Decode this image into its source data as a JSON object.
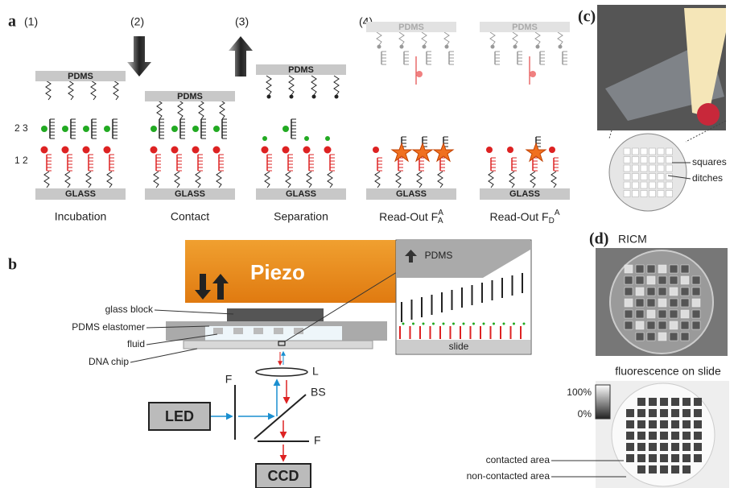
{
  "panel_a": {
    "label": "a",
    "strand_labels": [
      "2 3",
      "1 2"
    ],
    "steps": [
      {
        "number": "(1)",
        "top": "PDMS",
        "bottom": "GLASS",
        "caption": {
          "text": "Incubation"
        }
      },
      {
        "number": "(2)",
        "top": "PDMS",
        "bottom": "GLASS",
        "caption": {
          "text": "Contact"
        }
      },
      {
        "number": "(3)",
        "top": "PDMS",
        "bottom": "GLASS",
        "caption": {
          "text": "Separation"
        }
      },
      {
        "number": "(4)",
        "top": "PDMS",
        "bottom": "GLASS",
        "caption": {
          "text": "Read-Out F",
          "sub": "A",
          "sup": "A"
        }
      },
      {
        "top": "PDMS",
        "bottom": "GLASS",
        "caption": {
          "text": "Read-Out F",
          "sub": "D",
          "sup": "A"
        }
      }
    ]
  },
  "panel_b": {
    "label": "b",
    "piezo": "Piezo",
    "labels": [
      "glass block",
      "PDMS elastomer",
      "fluid",
      "DNA chip"
    ],
    "inset_top": "PDMS",
    "inset_bottom": "slide",
    "optics": {
      "lens": "L",
      "source": "LED",
      "filter1": "F",
      "splitter": "BS",
      "filter2": "F",
      "detector": "CCD"
    }
  },
  "panel_c": {
    "label": "(c)",
    "labels": [
      "squares",
      "ditches"
    ]
  },
  "panel_d": {
    "label": "(d)",
    "image1_title": "RICM",
    "image2_title": "fluorescence on slide",
    "scale": [
      "100%",
      "0%"
    ],
    "labels": [
      "contacted area",
      "non-contacted area"
    ]
  }
}
